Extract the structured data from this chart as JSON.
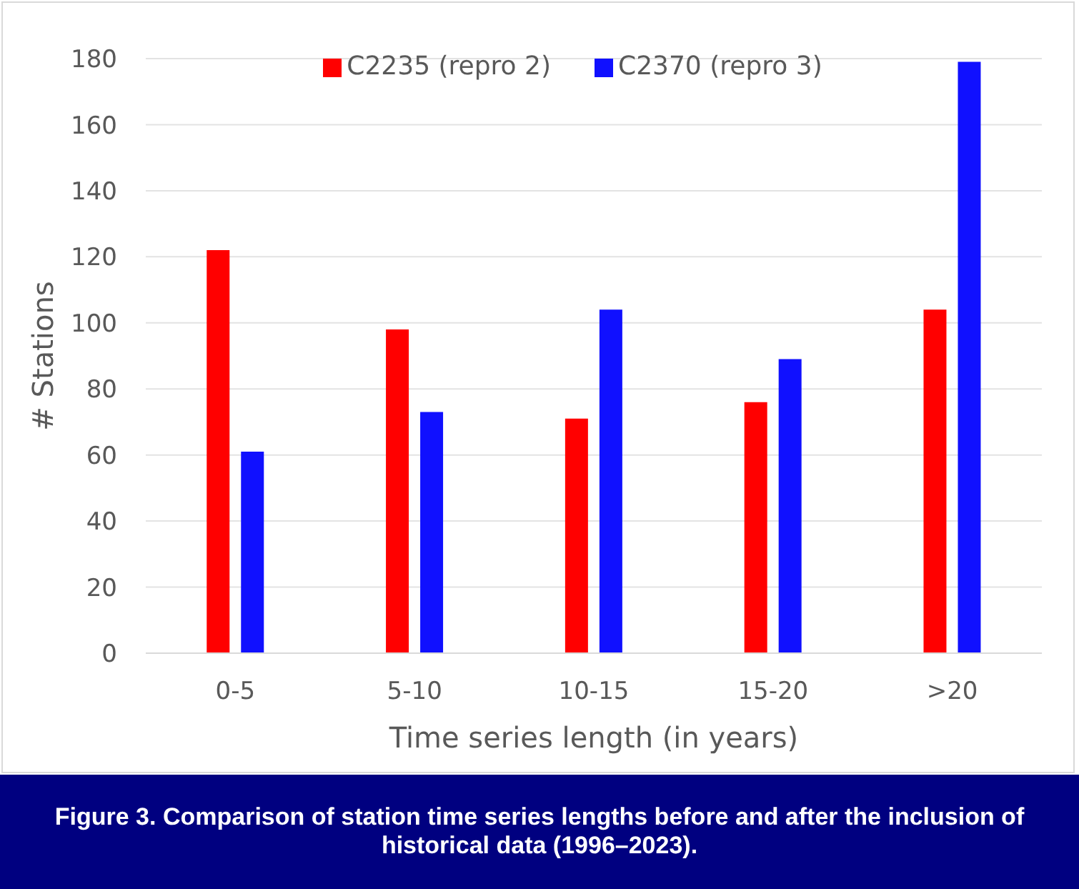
{
  "chart_data": {
    "type": "bar",
    "xlabel": "Time series length (in years)",
    "ylabel": "# Stations",
    "categories": [
      "0-5",
      "5-10",
      "10-15",
      "15-20",
      ">20"
    ],
    "series": [
      {
        "name": "C2235 (repro 2)",
        "color": "#ff0000",
        "values": [
          122,
          98,
          71,
          76,
          104
        ]
      },
      {
        "name": "C2370 (repro 3)",
        "color": "#1010ff",
        "values": [
          61,
          73,
          104,
          89,
          179
        ]
      }
    ],
    "ylim": [
      0,
      180
    ],
    "yticks": [
      0,
      20,
      40,
      60,
      80,
      100,
      120,
      140,
      160,
      180
    ],
    "grid": "y",
    "legend": "top",
    "annotations": [
      "Figure 3. Comparison of station time series lengths before and after the inclusion of historical data (1996–2023)."
    ]
  }
}
